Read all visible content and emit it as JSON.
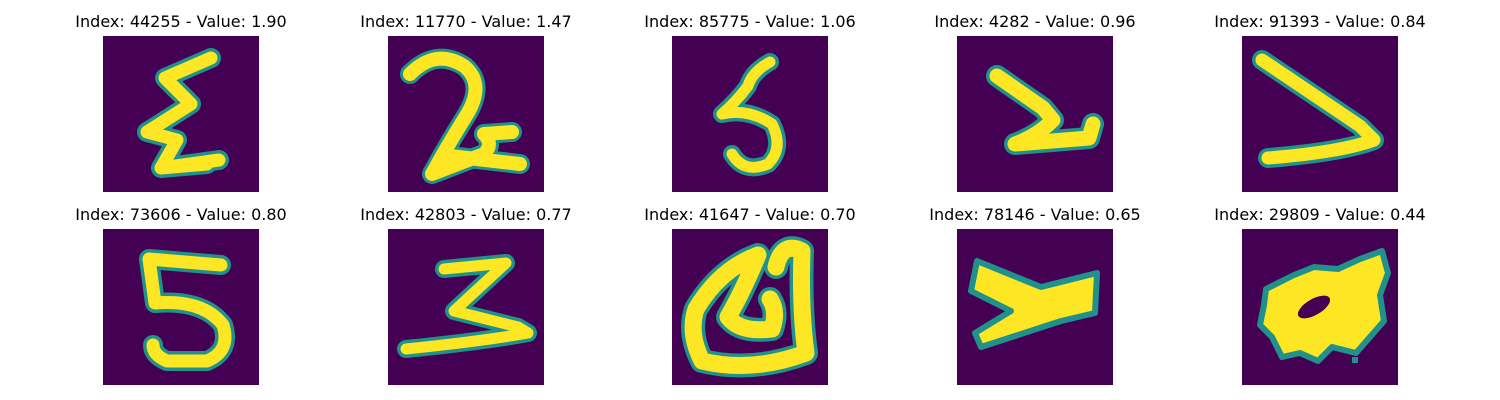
{
  "figure": {
    "colors": {
      "background": "#440154",
      "stroke": "#fde725",
      "edge": "#21918c"
    },
    "panels": [
      {
        "title": "Index: 44255 - Value: 1.90",
        "glyph": "digit-4-5"
      },
      {
        "title": "Index: 11770 - Value: 1.47",
        "glyph": "digit-2"
      },
      {
        "title": "Index: 85775 - Value: 1.06",
        "glyph": "digit-5"
      },
      {
        "title": "Index: 4282 - Value: 0.96",
        "glyph": "digit-2-angle"
      },
      {
        "title": "Index: 91393 - Value: 0.84",
        "glyph": "digit-2-angle"
      },
      {
        "title": "Index: 73606 - Value: 0.80",
        "glyph": "digit-5"
      },
      {
        "title": "Index: 42803 - Value: 0.77",
        "glyph": "digit-2-z"
      },
      {
        "title": "Index: 41647 - Value: 0.70",
        "glyph": "letter-a"
      },
      {
        "title": "Index: 78146 - Value: 0.65",
        "glyph": "digit-2-heavy"
      },
      {
        "title": "Index: 29809 - Value: 0.44",
        "glyph": "blob"
      }
    ]
  }
}
